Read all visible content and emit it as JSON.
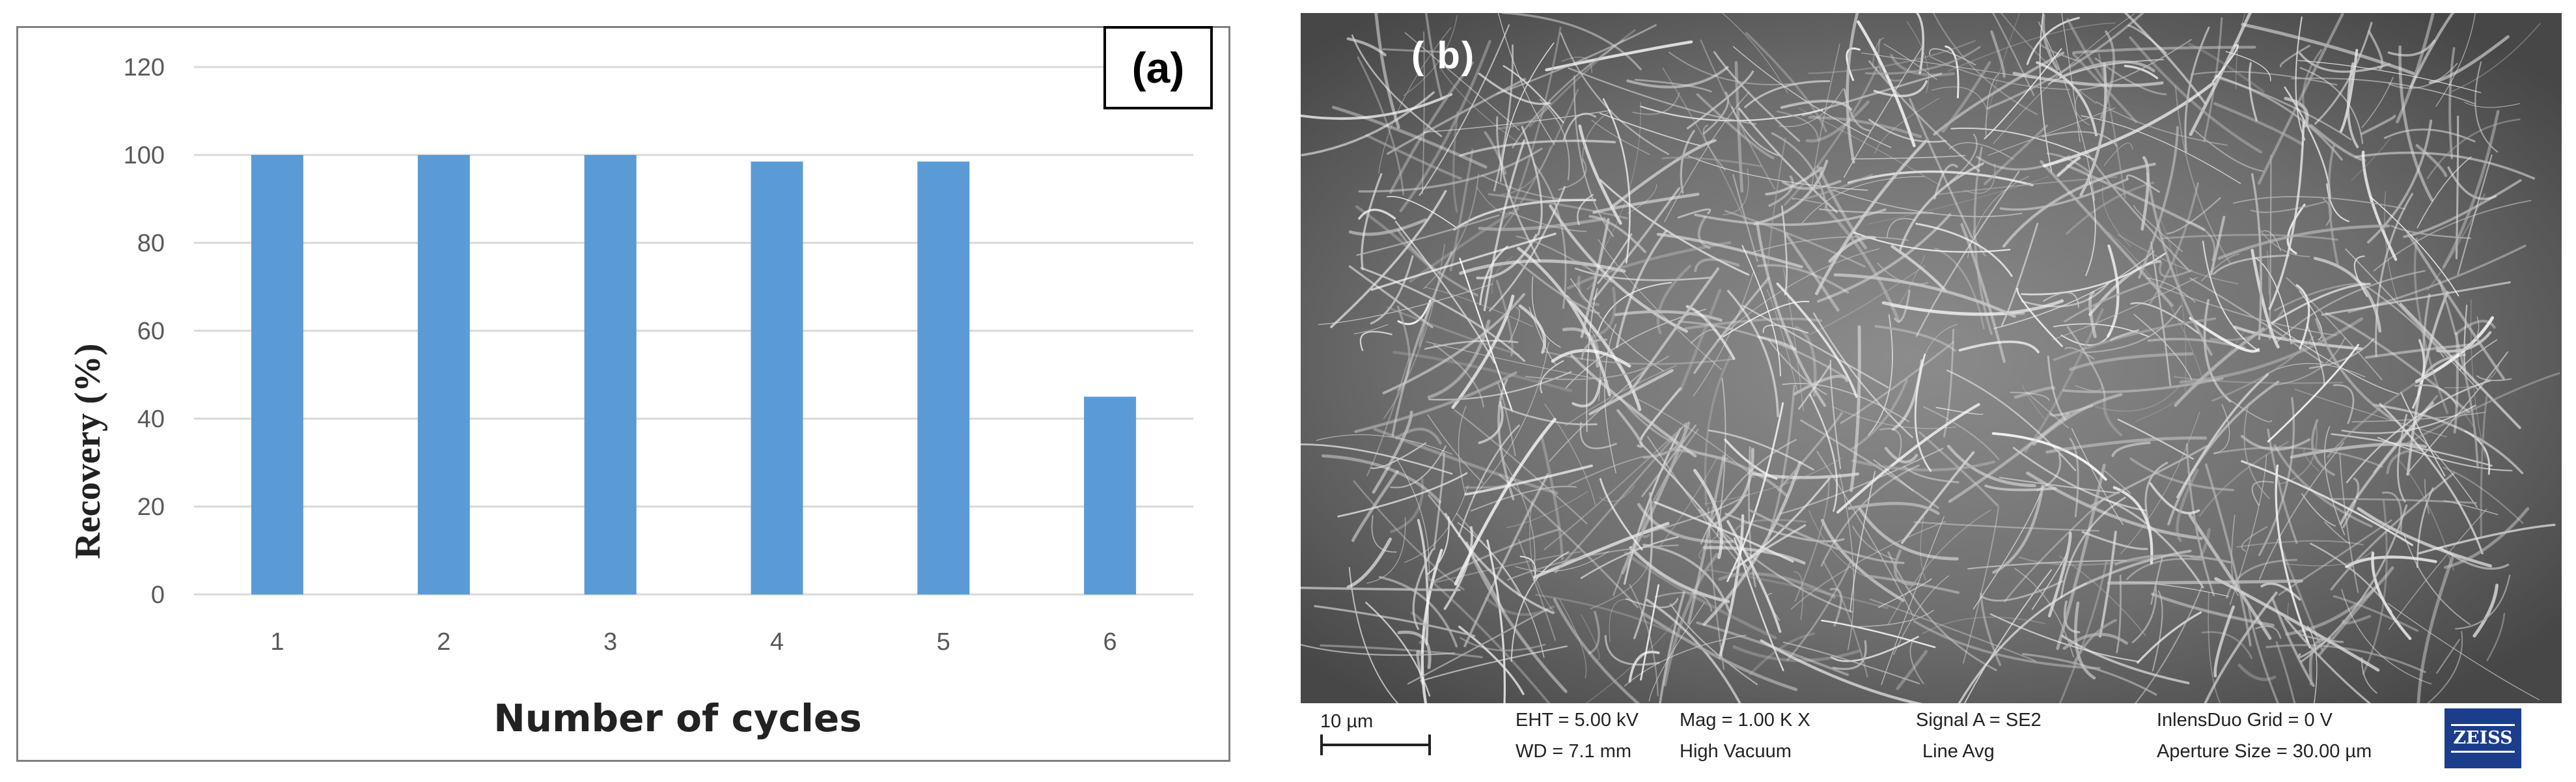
{
  "panel_a": {
    "label": "(a)"
  },
  "panel_b": {
    "label": "( b)"
  },
  "chart_data": {
    "type": "bar",
    "title": "",
    "xlabel": "Number of cycles",
    "ylabel": "Recovery (%)",
    "categories": [
      "1",
      "2",
      "3",
      "4",
      "5",
      "6"
    ],
    "values": [
      100,
      100,
      100,
      98.5,
      98.5,
      45
    ],
    "ylim": [
      0,
      120
    ],
    "yticks": [
      0,
      20,
      40,
      60,
      80,
      100,
      120
    ],
    "grid": true,
    "bar_color": "#5b9bd5",
    "gridline_color": "#d9d9d9"
  },
  "sem_image": {
    "description_icon": "sem-fiber-micrograph",
    "databar": {
      "scale": "10 µm",
      "eht": "EHT =  5.00 kV",
      "wd": "WD =  7.1 mm",
      "mag": "Mag =    1.00 K X",
      "vacuum": "High Vacuum",
      "signal": "Signal A = SE2",
      "line_avg": "Line Avg",
      "grid": "InlensDuo Grid =    0  V",
      "aperture": "Aperture Size = 30.00 µm",
      "logo": "ZEISS"
    }
  }
}
